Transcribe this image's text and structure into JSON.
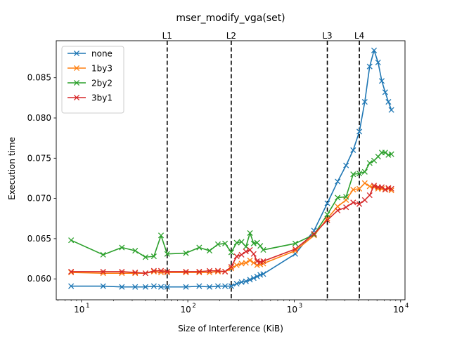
{
  "chart_data": {
    "type": "line",
    "title": "mser_modify_vga(set)",
    "xlabel": "Size of Interference (KiB)",
    "ylabel": "Execution time",
    "xscale": "log",
    "xlim": [
      5.8,
      11000
    ],
    "ylim": [
      0.0574,
      0.0896
    ],
    "grid": false,
    "legend_position": "top-left",
    "x_ticks": [
      {
        "value": 10,
        "label": "10",
        "exp": "1"
      },
      {
        "value": 100,
        "label": "10",
        "exp": "2"
      },
      {
        "value": 1000,
        "label": "10",
        "exp": "3"
      },
      {
        "value": 10000,
        "label": "10",
        "exp": "4"
      }
    ],
    "y_ticks": [
      {
        "value": 0.06,
        "label": "0.060"
      },
      {
        "value": 0.065,
        "label": "0.065"
      },
      {
        "value": 0.07,
        "label": "0.070"
      },
      {
        "value": 0.075,
        "label": "0.075"
      },
      {
        "value": 0.08,
        "label": "0.080"
      },
      {
        "value": 0.085,
        "label": "0.085"
      }
    ],
    "cache_lines": [
      {
        "label": "L1",
        "x": 64
      },
      {
        "label": "L2",
        "x": 256
      },
      {
        "label": "L3",
        "x": 2048
      },
      {
        "label": "L4",
        "x": 4096
      }
    ],
    "x": [
      8,
      16,
      24,
      32,
      40,
      48,
      56,
      64,
      96,
      128,
      160,
      192,
      224,
      256,
      288,
      320,
      352,
      384,
      416,
      448,
      480,
      512,
      1024,
      1536,
      2048,
      2560,
      3072,
      3584,
      4096,
      4608,
      5120,
      5632,
      6144,
      6656,
      7168,
      7680,
      8192
    ],
    "series": [
      {
        "name": "none",
        "color": "#1f77b4",
        "values": [
          0.0591,
          0.0591,
          0.059,
          0.059,
          0.059,
          0.0591,
          0.059,
          0.059,
          0.059,
          0.0591,
          0.059,
          0.0591,
          0.0591,
          0.0591,
          0.0594,
          0.0596,
          0.0597,
          0.0599,
          0.0601,
          0.0603,
          0.0605,
          0.0606,
          0.0631,
          0.066,
          0.0694,
          0.0721,
          0.0741,
          0.076,
          0.0783,
          0.082,
          0.0864,
          0.0884,
          0.0869,
          0.0846,
          0.0832,
          0.082,
          0.081
        ]
      },
      {
        "name": "1by3",
        "color": "#ff7f0e",
        "values": [
          0.0608,
          0.0607,
          0.0607,
          0.0607,
          0.0607,
          0.0609,
          0.0608,
          0.0608,
          0.0608,
          0.0608,
          0.0608,
          0.0609,
          0.0609,
          0.0613,
          0.0617,
          0.0619,
          0.062,
          0.0623,
          0.062,
          0.0617,
          0.0618,
          0.0619,
          0.0635,
          0.0654,
          0.0675,
          0.069,
          0.0698,
          0.0711,
          0.0712,
          0.0719,
          0.0715,
          0.0714,
          0.0712,
          0.0712,
          0.0711,
          0.0712,
          0.071
        ]
      },
      {
        "name": "2by2",
        "color": "#2ca02c",
        "values": [
          0.0648,
          0.063,
          0.0639,
          0.0635,
          0.0627,
          0.0628,
          0.0654,
          0.0631,
          0.0632,
          0.0639,
          0.0635,
          0.0643,
          0.0644,
          0.0633,
          0.0645,
          0.0646,
          0.064,
          0.0657,
          0.0644,
          0.0645,
          0.0641,
          0.0636,
          0.0644,
          0.0655,
          0.068,
          0.0701,
          0.0702,
          0.073,
          0.0731,
          0.0733,
          0.0744,
          0.0747,
          0.0752,
          0.0757,
          0.0757,
          0.0754,
          0.0755
        ]
      },
      {
        "name": "3by1",
        "color": "#d62728",
        "values": [
          0.0609,
          0.0609,
          0.0609,
          0.0608,
          0.0607,
          0.061,
          0.061,
          0.0609,
          0.0609,
          0.0609,
          0.061,
          0.061,
          0.0609,
          0.0615,
          0.0628,
          0.063,
          0.0634,
          0.0636,
          0.0631,
          0.0622,
          0.0621,
          0.0622,
          0.0637,
          0.0656,
          0.0673,
          0.0685,
          0.0689,
          0.0695,
          0.0693,
          0.0698,
          0.0704,
          0.0716,
          0.0714,
          0.0714,
          0.0711,
          0.0713,
          0.0712
        ]
      }
    ]
  }
}
